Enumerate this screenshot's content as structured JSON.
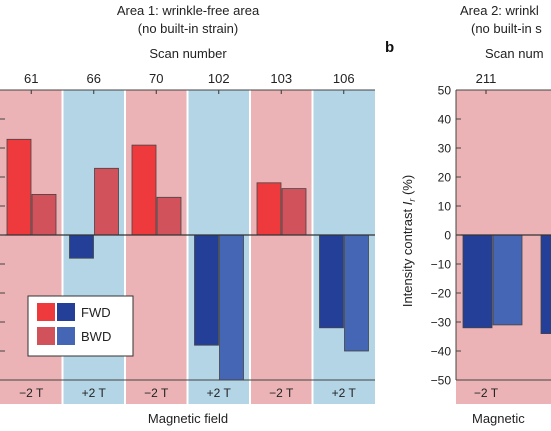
{
  "chart_data": [
    {
      "type": "bar",
      "title": "Area 1: wrinkle-free area",
      "subtitle": "(no built-in strain)",
      "top_axis_label": "Scan number",
      "xlabel": "Magnetic field",
      "ylabel": "",
      "ylim": [
        -50,
        50
      ],
      "scans": [
        "61",
        "66",
        "70",
        "102",
        "103",
        "106"
      ],
      "fields": [
        "−2 T",
        "+2 T",
        "−2 T",
        "+2 T",
        "−2 T",
        "+2 T"
      ],
      "band_colors": [
        "#ebb3b5",
        "#b3d5e6",
        "#ebb3b5",
        "#b3d5e6",
        "#ebb3b5",
        "#b3d5e6"
      ],
      "series": [
        {
          "name": "FWD",
          "values": [
            33,
            -8,
            31,
            -38,
            18,
            -32
          ]
        },
        {
          "name": "BWD",
          "values": [
            14,
            23,
            13,
            -50,
            16,
            -40
          ]
        }
      ],
      "legend": "lower-left",
      "legend_colors": [
        "#ee3a3d",
        "#243f98",
        "#d1525a",
        "#4466b4"
      ]
    },
    {
      "type": "bar",
      "panel_label": "b",
      "title": "Area 2: wrinkl",
      "subtitle": "(no built-in s",
      "top_axis_label": "Scan num",
      "xlabel": "Magnetic",
      "ylabel": "Intensity contrast I_r (%)",
      "ylim": [
        -50,
        50
      ],
      "yticks": [
        "50",
        "40",
        "30",
        "20",
        "10",
        "0",
        "−10",
        "−20",
        "−30",
        "−40",
        "−50"
      ],
      "scans": [
        "211"
      ],
      "fields": [
        "−2 T"
      ],
      "series": [
        {
          "name": "FWD",
          "values": [
            -32
          ]
        },
        {
          "name": "BWD",
          "values": [
            -31
          ]
        }
      ]
    }
  ]
}
